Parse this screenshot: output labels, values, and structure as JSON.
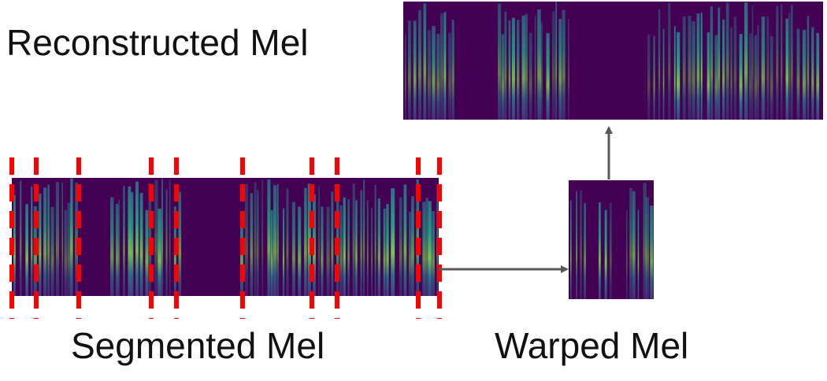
{
  "labels": {
    "reconstructed": "Reconstructed Mel",
    "segmented": "Segmented Mel",
    "warped": "Warped Mel"
  }
}
